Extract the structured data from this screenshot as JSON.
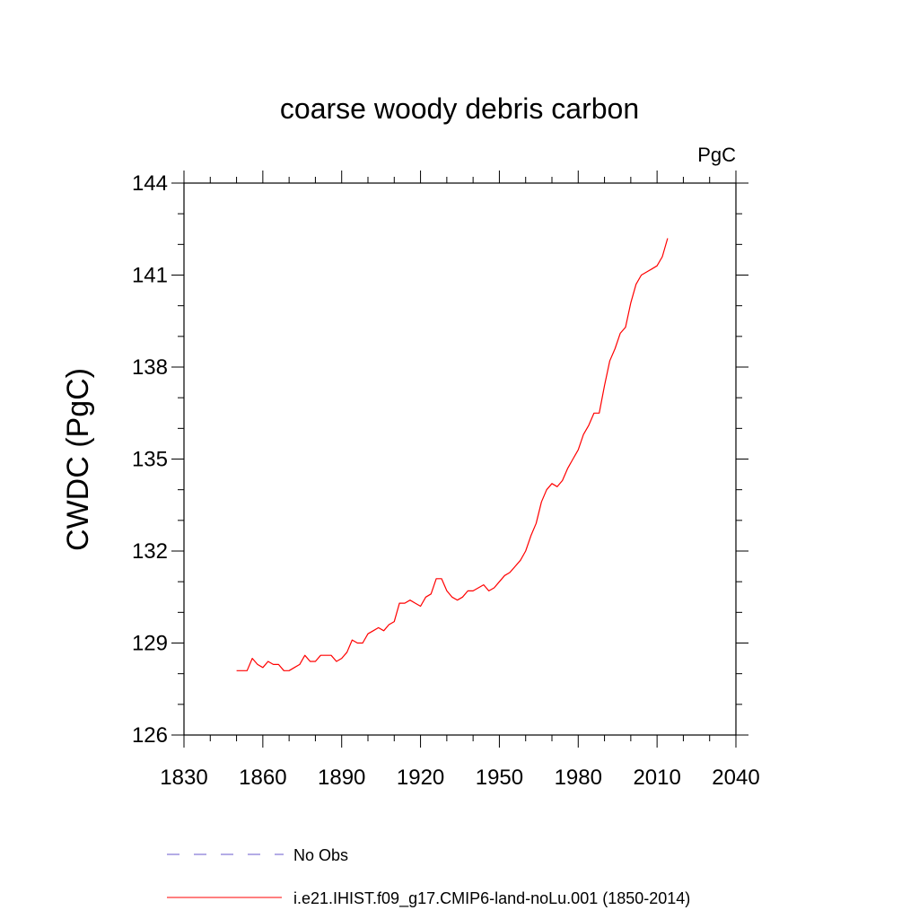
{
  "chart_data": {
    "type": "line",
    "title": "coarse woody debris carbon",
    "units_label": "PgC",
    "ylabel": "CWDC  (PgC)",
    "xlabel": "",
    "xlim": [
      1830,
      2040
    ],
    "ylim": [
      126,
      144
    ],
    "x_ticks": [
      1830,
      1860,
      1890,
      1920,
      1950,
      1980,
      2010,
      2040
    ],
    "y_ticks": [
      126,
      129,
      132,
      135,
      138,
      141,
      144
    ],
    "grid": false,
    "legend_position": "bottom",
    "legend": [
      {
        "label": "No Obs",
        "style": "dashed",
        "color": "#6a5acd"
      },
      {
        "label": "i.e21.IHIST.f09_g17.CMIP6-land-noLu.001 (1850-2014)",
        "style": "solid",
        "color": "#ff0000"
      }
    ],
    "series": [
      {
        "name": "i.e21.IHIST.f09_g17.CMIP6-land-noLu.001 (1850-2014)",
        "color": "#ff0000",
        "x": [
          1850,
          1852,
          1854,
          1856,
          1858,
          1860,
          1862,
          1864,
          1866,
          1868,
          1870,
          1872,
          1874,
          1876,
          1878,
          1880,
          1882,
          1884,
          1886,
          1888,
          1890,
          1892,
          1894,
          1896,
          1898,
          1900,
          1902,
          1904,
          1906,
          1908,
          1910,
          1912,
          1914,
          1916,
          1918,
          1920,
          1922,
          1924,
          1926,
          1928,
          1930,
          1932,
          1934,
          1936,
          1938,
          1940,
          1942,
          1944,
          1946,
          1948,
          1950,
          1952,
          1954,
          1956,
          1958,
          1960,
          1962,
          1964,
          1966,
          1968,
          1970,
          1972,
          1974,
          1976,
          1978,
          1980,
          1982,
          1984,
          1986,
          1988,
          1990,
          1992,
          1994,
          1996,
          1998,
          2000,
          2002,
          2004,
          2006,
          2008,
          2010,
          2012,
          2014
        ],
        "y": [
          128.1,
          128.1,
          128.1,
          128.5,
          128.3,
          128.2,
          128.4,
          128.3,
          128.3,
          128.1,
          128.1,
          128.2,
          128.3,
          128.6,
          128.4,
          128.4,
          128.6,
          128.6,
          128.6,
          128.4,
          128.5,
          128.7,
          129.1,
          129.0,
          129.0,
          129.3,
          129.4,
          129.5,
          129.4,
          129.6,
          129.7,
          130.3,
          130.3,
          130.4,
          130.3,
          130.2,
          130.5,
          130.6,
          131.1,
          131.1,
          130.7,
          130.5,
          130.4,
          130.5,
          130.7,
          130.7,
          130.8,
          130.9,
          130.7,
          130.8,
          131.0,
          131.2,
          131.3,
          131.5,
          131.7,
          132.0,
          132.5,
          132.9,
          133.6,
          134.0,
          134.2,
          134.1,
          134.3,
          134.7,
          135.0,
          135.3,
          135.8,
          136.1,
          136.5,
          136.5,
          137.4,
          138.2,
          138.6,
          139.1,
          139.3,
          140.1,
          140.7,
          141.0,
          141.1,
          141.2,
          141.3,
          141.6,
          142.2
        ]
      }
    ]
  }
}
